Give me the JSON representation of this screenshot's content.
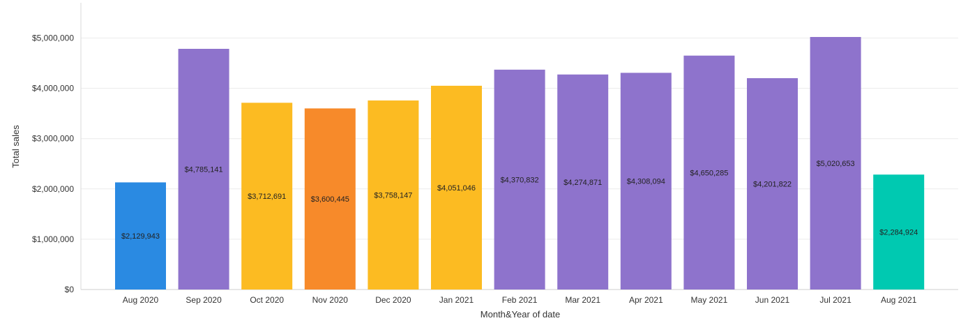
{
  "chart_data": {
    "type": "bar",
    "xlabel": "Month&Year of date",
    "ylabel": "Total sales",
    "ylim": [
      0,
      5500000
    ],
    "yticks": [
      {
        "value": 0,
        "label": "$0"
      },
      {
        "value": 1000000,
        "label": "$1,000,000"
      },
      {
        "value": 2000000,
        "label": "$2,000,000"
      },
      {
        "value": 3000000,
        "label": "$3,000,000"
      },
      {
        "value": 4000000,
        "label": "$4,000,000"
      },
      {
        "value": 5000000,
        "label": "$5,000,000"
      }
    ],
    "grid": true,
    "bars": [
      {
        "category": "Aug 2020",
        "value": 2129943,
        "label": "$2,129,943",
        "color": "#2a8ae2"
      },
      {
        "category": "Sep 2020",
        "value": 4785141,
        "label": "$4,785,141",
        "color": "#8e73cc"
      },
      {
        "category": "Oct 2020",
        "value": 3712691,
        "label": "$3,712,691",
        "color": "#fcbb22"
      },
      {
        "category": "Nov 2020",
        "value": 3600445,
        "label": "$3,600,445",
        "color": "#f78a2a"
      },
      {
        "category": "Dec 2020",
        "value": 3758147,
        "label": "$3,758,147",
        "color": "#fcbb22"
      },
      {
        "category": "Jan 2021",
        "value": 4051046,
        "label": "$4,051,046",
        "color": "#fcbb22"
      },
      {
        "category": "Feb 2021",
        "value": 4370832,
        "label": "$4,370,832",
        "color": "#8e73cc"
      },
      {
        "category": "Mar 2021",
        "value": 4274871,
        "label": "$4,274,871",
        "color": "#8e73cc"
      },
      {
        "category": "Apr 2021",
        "value": 4308094,
        "label": "$4,308,094",
        "color": "#8e73cc"
      },
      {
        "category": "May 2021",
        "value": 4650285,
        "label": "$4,650,285",
        "color": "#8e73cc"
      },
      {
        "category": "Jun 2021",
        "value": 4201822,
        "label": "$4,201,822",
        "color": "#8e73cc"
      },
      {
        "category": "Jul 2021",
        "value": 5020653,
        "label": "$5,020,653",
        "color": "#8e73cc"
      },
      {
        "category": "Aug 2021",
        "value": 2284924,
        "label": "$2,284,924",
        "color": "#00c9b1"
      }
    ]
  }
}
